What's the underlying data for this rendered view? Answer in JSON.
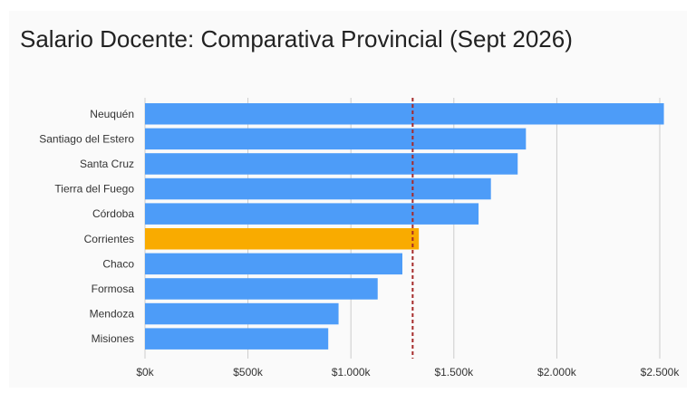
{
  "chart_data": {
    "type": "bar",
    "orientation": "horizontal",
    "title": "Salario Docente: Comparativa Provincial (Sept 2026)",
    "xlabel": "",
    "ylabel": "",
    "categories": [
      "Neuquén",
      "Santiago del Estero",
      "Santa Cruz",
      "Tierra del Fuego",
      "Córdoba",
      "Corrientes",
      "Chaco",
      "Formosa",
      "Mendoza",
      "Misiones"
    ],
    "values": [
      2520000,
      1850000,
      1810000,
      1680000,
      1620000,
      1330000,
      1250000,
      1130000,
      940000,
      890000
    ],
    "xlim": [
      0,
      2500000
    ],
    "xticks": [
      0,
      500000,
      1000000,
      1500000,
      2000000,
      2500000
    ],
    "xtick_labels": [
      "$0k",
      "$500k",
      "$1.000k",
      "$1.500k",
      "$2.000k",
      "$2.500k"
    ],
    "reference_line": {
      "value": 1300000,
      "style": "dashed",
      "color": "#a52a2a"
    },
    "highlight_category": "Corrientes",
    "colors": {
      "bar": "#4d9cf8",
      "highlight": "#f9ab00",
      "grid": "#cccccc"
    },
    "grid": true,
    "legend": "none"
  }
}
